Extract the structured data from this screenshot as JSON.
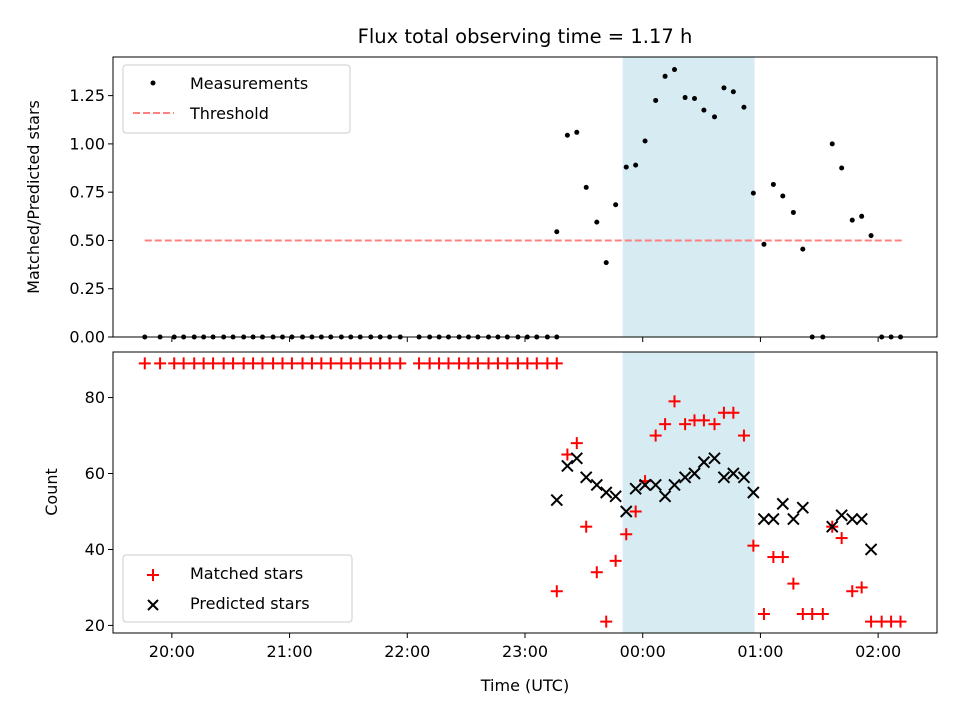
{
  "figure": {
    "title": "Flux total observing time = 1.17 h"
  },
  "chart_data": [
    {
      "type": "scatter",
      "ylabel": "Matched/Predicted stars",
      "xlim": [
        19.5,
        26.5
      ],
      "ylim": [
        0,
        1.45
      ],
      "yticks": [
        0.0,
        0.25,
        0.5,
        0.75,
        1.0,
        1.25
      ],
      "ytick_labels": [
        "0.00",
        "0.25",
        "0.50",
        "0.75",
        "1.00",
        "1.25"
      ],
      "xticks": [
        20,
        21,
        22,
        23,
        24,
        25,
        26
      ],
      "highlight_span": [
        23.83,
        24.95
      ],
      "highlight_color": "#add8e6",
      "legend": {
        "placement": "top-left",
        "entries": [
          "Measurements",
          "Threshold"
        ]
      },
      "threshold": {
        "name": "Threshold",
        "value": 0.5,
        "x_range": [
          19.77,
          26.2
        ],
        "color": "#ff8080"
      },
      "series": [
        {
          "name": "Measurements",
          "color": "#000000",
          "marker": "dot",
          "points": [
            [
              19.77,
              0
            ],
            [
              19.9,
              0
            ],
            [
              20.02,
              0
            ],
            [
              20.1,
              0
            ],
            [
              20.19,
              0
            ],
            [
              20.27,
              0
            ],
            [
              20.35,
              0
            ],
            [
              20.44,
              0
            ],
            [
              20.52,
              0
            ],
            [
              20.61,
              0
            ],
            [
              20.69,
              0
            ],
            [
              20.77,
              0
            ],
            [
              20.86,
              0
            ],
            [
              20.94,
              0
            ],
            [
              21.02,
              0
            ],
            [
              21.11,
              0
            ],
            [
              21.19,
              0
            ],
            [
              21.27,
              0
            ],
            [
              21.35,
              0
            ],
            [
              21.44,
              0
            ],
            [
              21.52,
              0
            ],
            [
              21.6,
              0
            ],
            [
              21.69,
              0
            ],
            [
              21.77,
              0
            ],
            [
              21.85,
              0
            ],
            [
              21.94,
              0
            ],
            [
              22.1,
              0
            ],
            [
              22.19,
              0
            ],
            [
              22.27,
              0
            ],
            [
              22.35,
              0
            ],
            [
              22.44,
              0
            ],
            [
              22.52,
              0
            ],
            [
              22.6,
              0
            ],
            [
              22.69,
              0
            ],
            [
              22.77,
              0
            ],
            [
              22.85,
              0
            ],
            [
              22.94,
              0
            ],
            [
              23.02,
              0
            ],
            [
              23.1,
              0
            ],
            [
              23.19,
              0
            ],
            [
              23.27,
              0
            ],
            [
              23.27,
              0.545
            ],
            [
              23.36,
              1.045
            ],
            [
              23.44,
              1.06
            ],
            [
              23.52,
              0.775
            ],
            [
              23.61,
              0.595
            ],
            [
              23.69,
              0.385
            ],
            [
              23.77,
              0.685
            ],
            [
              23.86,
              0.88
            ],
            [
              23.94,
              0.89
            ],
            [
              24.02,
              1.015
            ],
            [
              24.11,
              1.225
            ],
            [
              24.19,
              1.35
            ],
            [
              24.27,
              1.385
            ],
            [
              24.36,
              1.24
            ],
            [
              24.44,
              1.235
            ],
            [
              24.52,
              1.175
            ],
            [
              24.61,
              1.14
            ],
            [
              24.69,
              1.29
            ],
            [
              24.77,
              1.27
            ],
            [
              24.86,
              1.19
            ],
            [
              24.94,
              0.745
            ],
            [
              25.03,
              0.48
            ],
            [
              25.11,
              0.79
            ],
            [
              25.19,
              0.73
            ],
            [
              25.28,
              0.645
            ],
            [
              25.36,
              0.455
            ],
            [
              25.44,
              0
            ],
            [
              25.53,
              0
            ],
            [
              25.61,
              1.0
            ],
            [
              25.69,
              0.875
            ],
            [
              25.78,
              0.605
            ],
            [
              25.86,
              0.625
            ],
            [
              25.94,
              0.525
            ],
            [
              26.03,
              0
            ],
            [
              26.11,
              0
            ],
            [
              26.19,
              0
            ]
          ]
        }
      ]
    },
    {
      "type": "scatter",
      "xlabel": "Time (UTC)",
      "ylabel": "Count",
      "xlim": [
        19.5,
        26.5
      ],
      "ylim": [
        18,
        92
      ],
      "yticks": [
        20,
        40,
        60,
        80
      ],
      "ytick_labels": [
        "20",
        "40",
        "60",
        "80"
      ],
      "xticks": [
        20,
        21,
        22,
        23,
        24,
        25,
        26
      ],
      "xtick_labels": [
        "20:00",
        "21:00",
        "22:00",
        "23:00",
        "00:00",
        "01:00",
        "02:00"
      ],
      "highlight_span": [
        23.83,
        24.95
      ],
      "highlight_color": "#add8e6",
      "legend": {
        "placement": "bottom-left",
        "entries": [
          "Matched stars",
          "Predicted stars"
        ]
      },
      "series": [
        {
          "name": "Matched stars",
          "color": "#ff0000",
          "marker": "plus",
          "points": [
            [
              19.77,
              89
            ],
            [
              19.9,
              89
            ],
            [
              20.02,
              89
            ],
            [
              20.1,
              89
            ],
            [
              20.19,
              89
            ],
            [
              20.27,
              89
            ],
            [
              20.35,
              89
            ],
            [
              20.44,
              89
            ],
            [
              20.52,
              89
            ],
            [
              20.61,
              89
            ],
            [
              20.69,
              89
            ],
            [
              20.77,
              89
            ],
            [
              20.86,
              89
            ],
            [
              20.94,
              89
            ],
            [
              21.02,
              89
            ],
            [
              21.11,
              89
            ],
            [
              21.19,
              89
            ],
            [
              21.27,
              89
            ],
            [
              21.35,
              89
            ],
            [
              21.44,
              89
            ],
            [
              21.52,
              89
            ],
            [
              21.6,
              89
            ],
            [
              21.69,
              89
            ],
            [
              21.77,
              89
            ],
            [
              21.85,
              89
            ],
            [
              21.94,
              89
            ],
            [
              22.1,
              89
            ],
            [
              22.19,
              89
            ],
            [
              22.27,
              89
            ],
            [
              22.35,
              89
            ],
            [
              22.44,
              89
            ],
            [
              22.52,
              89
            ],
            [
              22.6,
              89
            ],
            [
              22.69,
              89
            ],
            [
              22.77,
              89
            ],
            [
              22.85,
              89
            ],
            [
              22.94,
              89
            ],
            [
              23.02,
              89
            ],
            [
              23.1,
              89
            ],
            [
              23.19,
              89
            ],
            [
              23.27,
              89
            ],
            [
              23.27,
              29
            ],
            [
              23.36,
              65
            ],
            [
              23.44,
              68
            ],
            [
              23.52,
              46
            ],
            [
              23.61,
              34
            ],
            [
              23.69,
              21
            ],
            [
              23.77,
              37
            ],
            [
              23.86,
              44
            ],
            [
              23.94,
              50
            ],
            [
              24.02,
              58
            ],
            [
              24.11,
              70
            ],
            [
              24.19,
              73
            ],
            [
              24.27,
              79
            ],
            [
              24.36,
              73
            ],
            [
              24.44,
              74
            ],
            [
              24.52,
              74
            ],
            [
              24.61,
              73
            ],
            [
              24.69,
              76
            ],
            [
              24.77,
              76
            ],
            [
              24.86,
              70
            ],
            [
              24.94,
              41
            ],
            [
              25.03,
              23
            ],
            [
              25.11,
              38
            ],
            [
              25.19,
              38
            ],
            [
              25.28,
              31
            ],
            [
              25.36,
              23
            ],
            [
              25.44,
              23
            ],
            [
              25.53,
              23
            ],
            [
              25.61,
              46
            ],
            [
              25.69,
              43
            ],
            [
              25.78,
              29
            ],
            [
              25.86,
              30
            ],
            [
              25.94,
              21
            ],
            [
              26.03,
              21
            ],
            [
              26.11,
              21
            ],
            [
              26.19,
              21
            ]
          ]
        },
        {
          "name": "Predicted stars",
          "color": "#000000",
          "marker": "x",
          "points": [
            [
              23.27,
              53
            ],
            [
              23.36,
              62
            ],
            [
              23.44,
              64
            ],
            [
              23.52,
              59
            ],
            [
              23.61,
              57
            ],
            [
              23.69,
              55
            ],
            [
              23.77,
              54
            ],
            [
              23.86,
              50
            ],
            [
              23.94,
              56
            ],
            [
              24.02,
              57
            ],
            [
              24.11,
              57
            ],
            [
              24.19,
              54
            ],
            [
              24.27,
              57
            ],
            [
              24.36,
              59
            ],
            [
              24.44,
              60
            ],
            [
              24.52,
              63
            ],
            [
              24.61,
              64
            ],
            [
              24.69,
              59
            ],
            [
              24.77,
              60
            ],
            [
              24.86,
              59
            ],
            [
              24.94,
              55
            ],
            [
              25.03,
              48
            ],
            [
              25.11,
              48
            ],
            [
              25.19,
              52
            ],
            [
              25.28,
              48
            ],
            [
              25.36,
              51
            ],
            [
              25.61,
              46
            ],
            [
              25.69,
              49
            ],
            [
              25.78,
              48
            ],
            [
              25.86,
              48
            ],
            [
              25.94,
              40
            ]
          ]
        }
      ]
    }
  ]
}
